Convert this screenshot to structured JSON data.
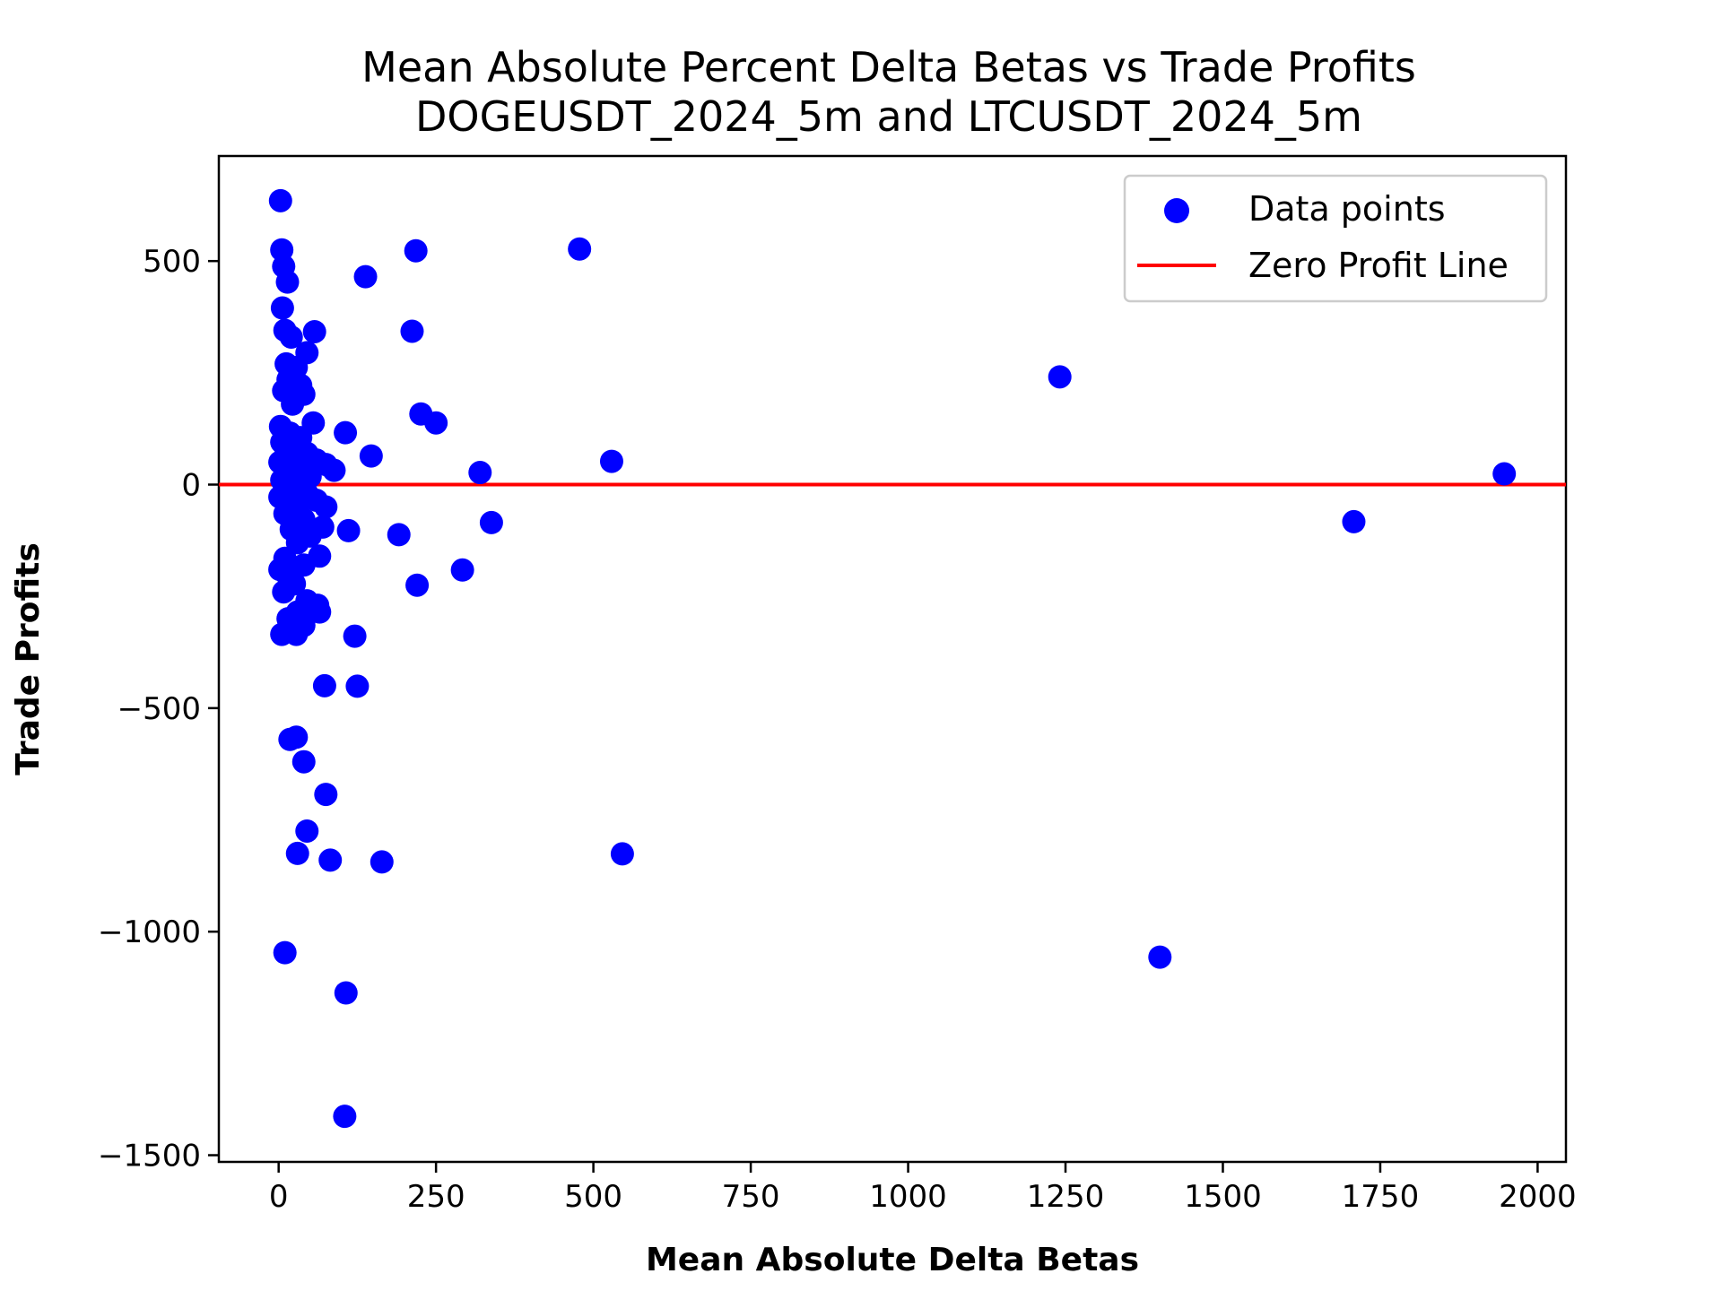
{
  "chart_data": {
    "type": "scatter",
    "title": "Mean Absolute Percent Delta Betas vs Trade Profits",
    "subtitle": "DOGEUSDT_2024_5m and LTCUSDT_2024_5m",
    "xlabel": "Mean Absolute Delta Betas",
    "ylabel": "Trade Profits",
    "xlim": [
      -95,
      2045
    ],
    "ylim": [
      -1515,
      735
    ],
    "xticks": [
      0,
      250,
      500,
      750,
      1000,
      1250,
      1500,
      1750,
      2000
    ],
    "xtick_labels": [
      "0",
      "250",
      "500",
      "750",
      "1000",
      "1250",
      "1500",
      "1750",
      "2000"
    ],
    "yticks": [
      500,
      0,
      -500,
      -1000,
      -1500
    ],
    "ytick_labels": [
      "500",
      "0",
      "−500",
      "−1000",
      "−1500"
    ],
    "grid": false,
    "legend_position": "top-right",
    "series": [
      {
        "name": "Data points",
        "marker": "circle",
        "color": "#0000ff",
        "points": [
          [
            3,
            635
          ],
          [
            5,
            525
          ],
          [
            8,
            488
          ],
          [
            14,
            453
          ],
          [
            6,
            395
          ],
          [
            10,
            345
          ],
          [
            20,
            330
          ],
          [
            57,
            342
          ],
          [
            45,
            295
          ],
          [
            12,
            270
          ],
          [
            28,
            262
          ],
          [
            15,
            235
          ],
          [
            35,
            222
          ],
          [
            8,
            210
          ],
          [
            40,
            202
          ],
          [
            22,
            180
          ],
          [
            55,
            138
          ],
          [
            3,
            130
          ],
          [
            18,
            115
          ],
          [
            35,
            105
          ],
          [
            5,
            95
          ],
          [
            25,
            85
          ],
          [
            45,
            70
          ],
          [
            10,
            62
          ],
          [
            60,
            55
          ],
          [
            2,
            50
          ],
          [
            30,
            45
          ],
          [
            75,
            45
          ],
          [
            88,
            32
          ],
          [
            15,
            25
          ],
          [
            50,
            18
          ],
          [
            5,
            10
          ],
          [
            35,
            5
          ],
          [
            20,
            -10
          ],
          [
            45,
            -20
          ],
          [
            2,
            -28
          ],
          [
            60,
            -35
          ],
          [
            75,
            -50
          ],
          [
            30,
            -55
          ],
          [
            10,
            -65
          ],
          [
            40,
            -78
          ],
          [
            70,
            -95
          ],
          [
            20,
            -100
          ],
          [
            50,
            -115
          ],
          [
            30,
            -130
          ],
          [
            65,
            -160
          ],
          [
            10,
            -165
          ],
          [
            40,
            -180
          ],
          [
            2,
            -190
          ],
          [
            15,
            -205
          ],
          [
            25,
            -222
          ],
          [
            8,
            -240
          ],
          [
            45,
            -260
          ],
          [
            62,
            -270
          ],
          [
            30,
            -285
          ],
          [
            65,
            -285
          ],
          [
            15,
            -300
          ],
          [
            40,
            -315
          ],
          [
            5,
            -335
          ],
          [
            28,
            -335
          ],
          [
            73,
            -450
          ],
          [
            18,
            -570
          ],
          [
            28,
            -565
          ],
          [
            40,
            -620
          ],
          [
            75,
            -693
          ],
          [
            45,
            -775
          ],
          [
            30,
            -825
          ],
          [
            82,
            -840
          ],
          [
            10,
            -1047
          ],
          [
            107,
            -1137
          ],
          [
            105,
            -1413
          ],
          [
            218,
            523
          ],
          [
            138,
            465
          ],
          [
            212,
            343
          ],
          [
            226,
            158
          ],
          [
            250,
            138
          ],
          [
            106,
            116
          ],
          [
            147,
            64
          ],
          [
            111,
            -103
          ],
          [
            191,
            -112
          ],
          [
            121,
            -339
          ],
          [
            125,
            -451
          ],
          [
            164,
            -844
          ],
          [
            220,
            -225
          ],
          [
            292,
            -191
          ],
          [
            320,
            27
          ],
          [
            338,
            -85
          ],
          [
            478,
            527
          ],
          [
            529,
            52
          ],
          [
            546,
            -826
          ],
          [
            1241,
            241
          ],
          [
            1400,
            -1057
          ],
          [
            1708,
            -83
          ],
          [
            1947,
            24
          ]
        ]
      },
      {
        "name": "Zero Profit Line",
        "type": "hline",
        "y": 0,
        "color": "#ff0000"
      }
    ]
  }
}
